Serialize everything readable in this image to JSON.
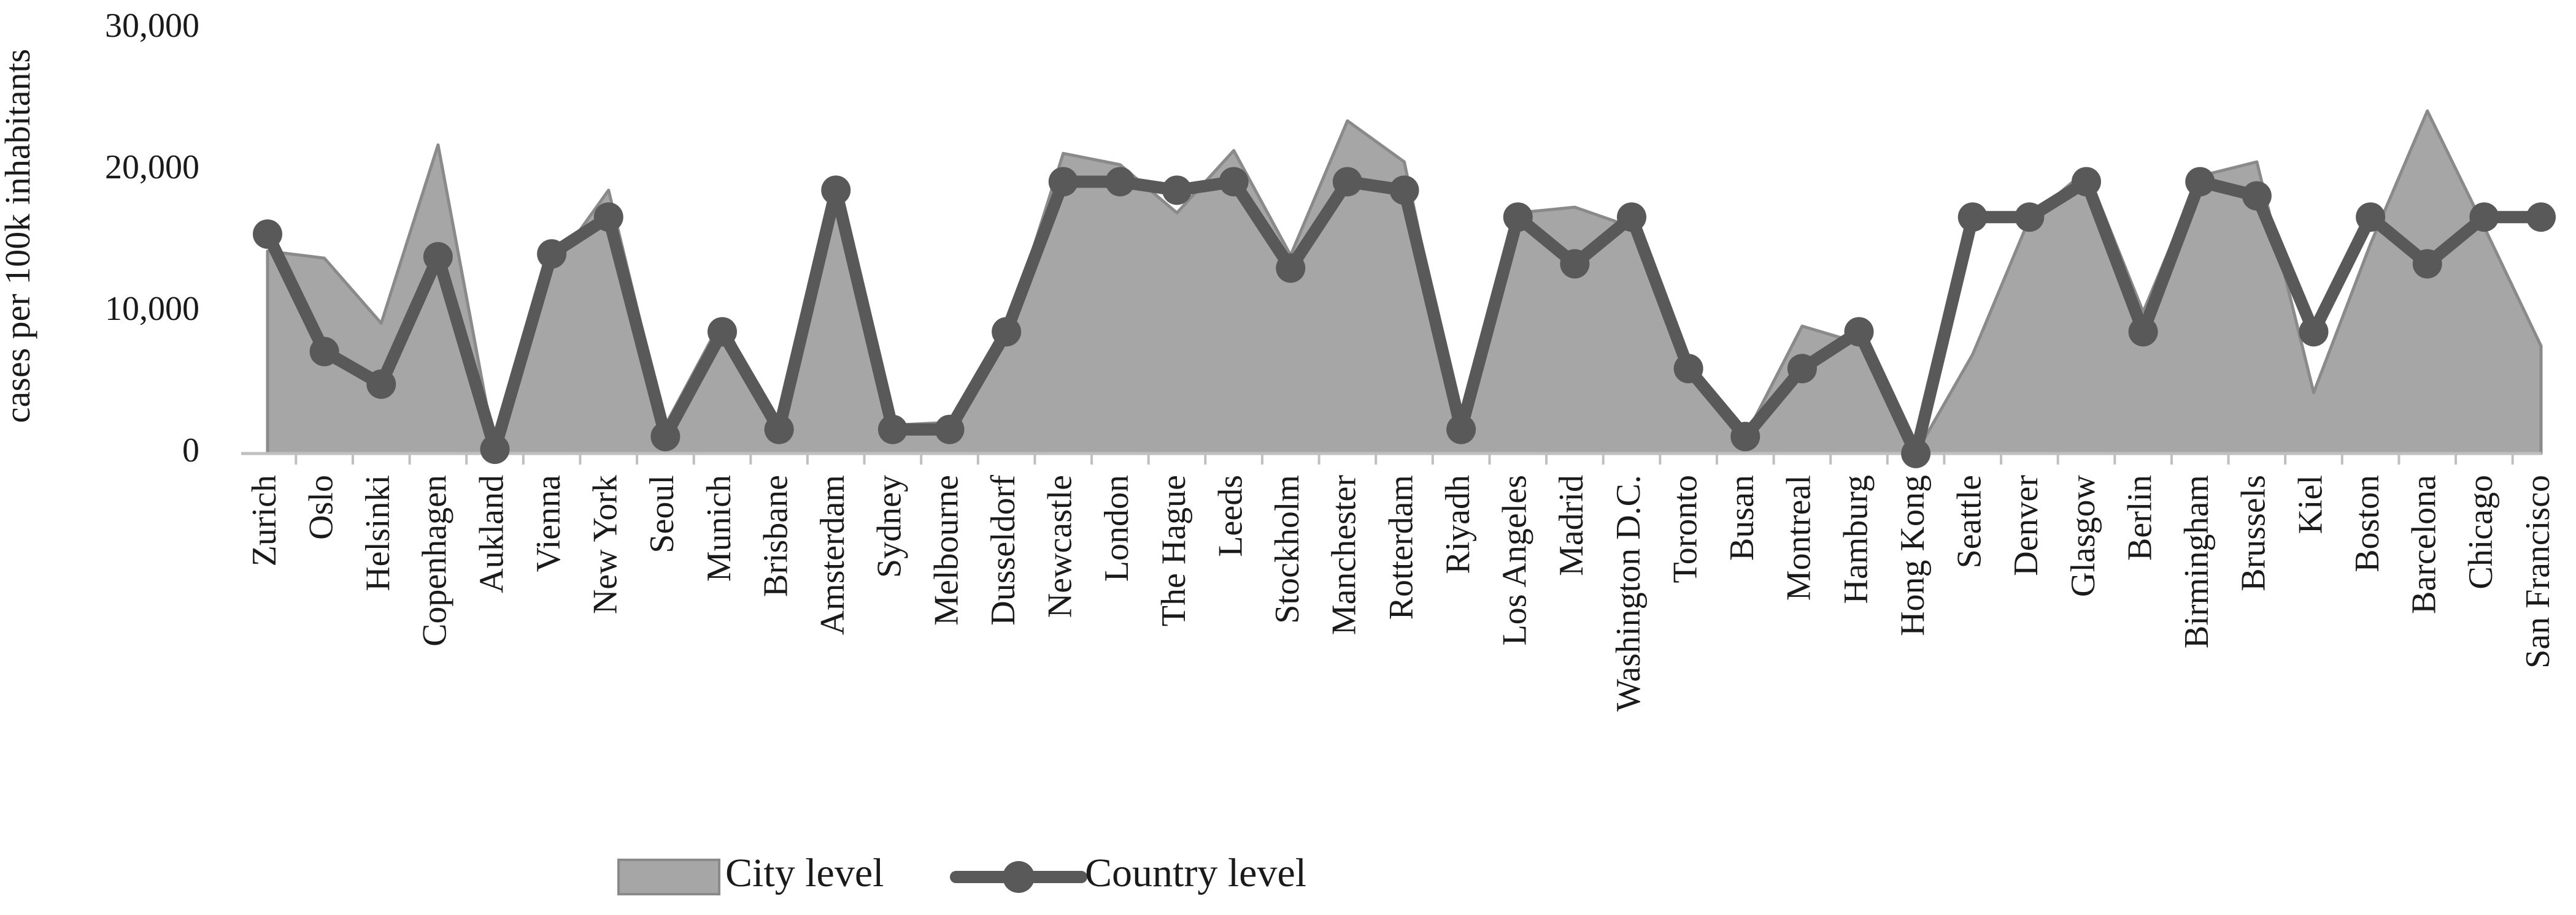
{
  "chart_data": {
    "type": "area",
    "title": "",
    "xlabel": "",
    "ylabel": "cases per 100k inhabitants",
    "ylim": [
      0,
      30000
    ],
    "yticks": [
      0,
      10000,
      20000,
      30000
    ],
    "ytick_labels": [
      "0",
      "10,000",
      "20,000",
      "30,000"
    ],
    "grid": false,
    "legend_position": "bottom",
    "categories": [
      "Zurich",
      "Oslo",
      "Helsinki",
      "Copenhagen",
      "Aukland",
      "Vienna",
      "New York",
      "Seoul",
      "Munich",
      "Brisbane",
      "Amsterdam",
      "Sydney",
      "Melbourne",
      "Dusseldorf",
      "Newcastle",
      "London",
      "The Hague",
      "Leeds",
      "Stockholm",
      "Manchester",
      "Rotterdam",
      "Riyadh",
      "Los Angeles",
      "Madrid",
      "Washington D.C.",
      "Toronto",
      "Busan",
      "Montreal",
      "Hamburg",
      "Hong Kong",
      "Seattle",
      "Denver",
      "Glasgow",
      "Berlin",
      "Birmingham",
      "Brussels",
      "Kiel",
      "Boston",
      "Barcelona",
      "Chicago",
      "San Francisco"
    ],
    "series": [
      {
        "name": "City level",
        "kind": "area",
        "color": "#a6a6a6",
        "edge_color": "#8a8a8a",
        "values": [
          14300,
          13800,
          9200,
          21800,
          300,
          13000,
          18600,
          2000,
          9500,
          1500,
          18600,
          2000,
          2200,
          8500,
          21200,
          20400,
          17000,
          21400,
          14000,
          23500,
          20600,
          1600,
          17000,
          17400,
          16000,
          6000,
          1200,
          9000,
          7800,
          0,
          7000,
          16600,
          20000,
          10000,
          19600,
          20600,
          4300,
          14800,
          24200,
          16000,
          7600
        ]
      },
      {
        "name": "Country level",
        "kind": "line",
        "color": "#595959",
        "values": [
          15500,
          7200,
          4900,
          13900,
          300,
          14100,
          16700,
          1200,
          8600,
          1700,
          18600,
          1700,
          1700,
          8600,
          19200,
          19200,
          18600,
          19200,
          13100,
          19200,
          18600,
          1700,
          16700,
          13400,
          16700,
          6000,
          1200,
          6000,
          8600,
          0,
          16700,
          16700,
          19200,
          8600,
          19200,
          18200,
          8600,
          16700,
          13400,
          16700,
          16700
        ]
      }
    ]
  }
}
